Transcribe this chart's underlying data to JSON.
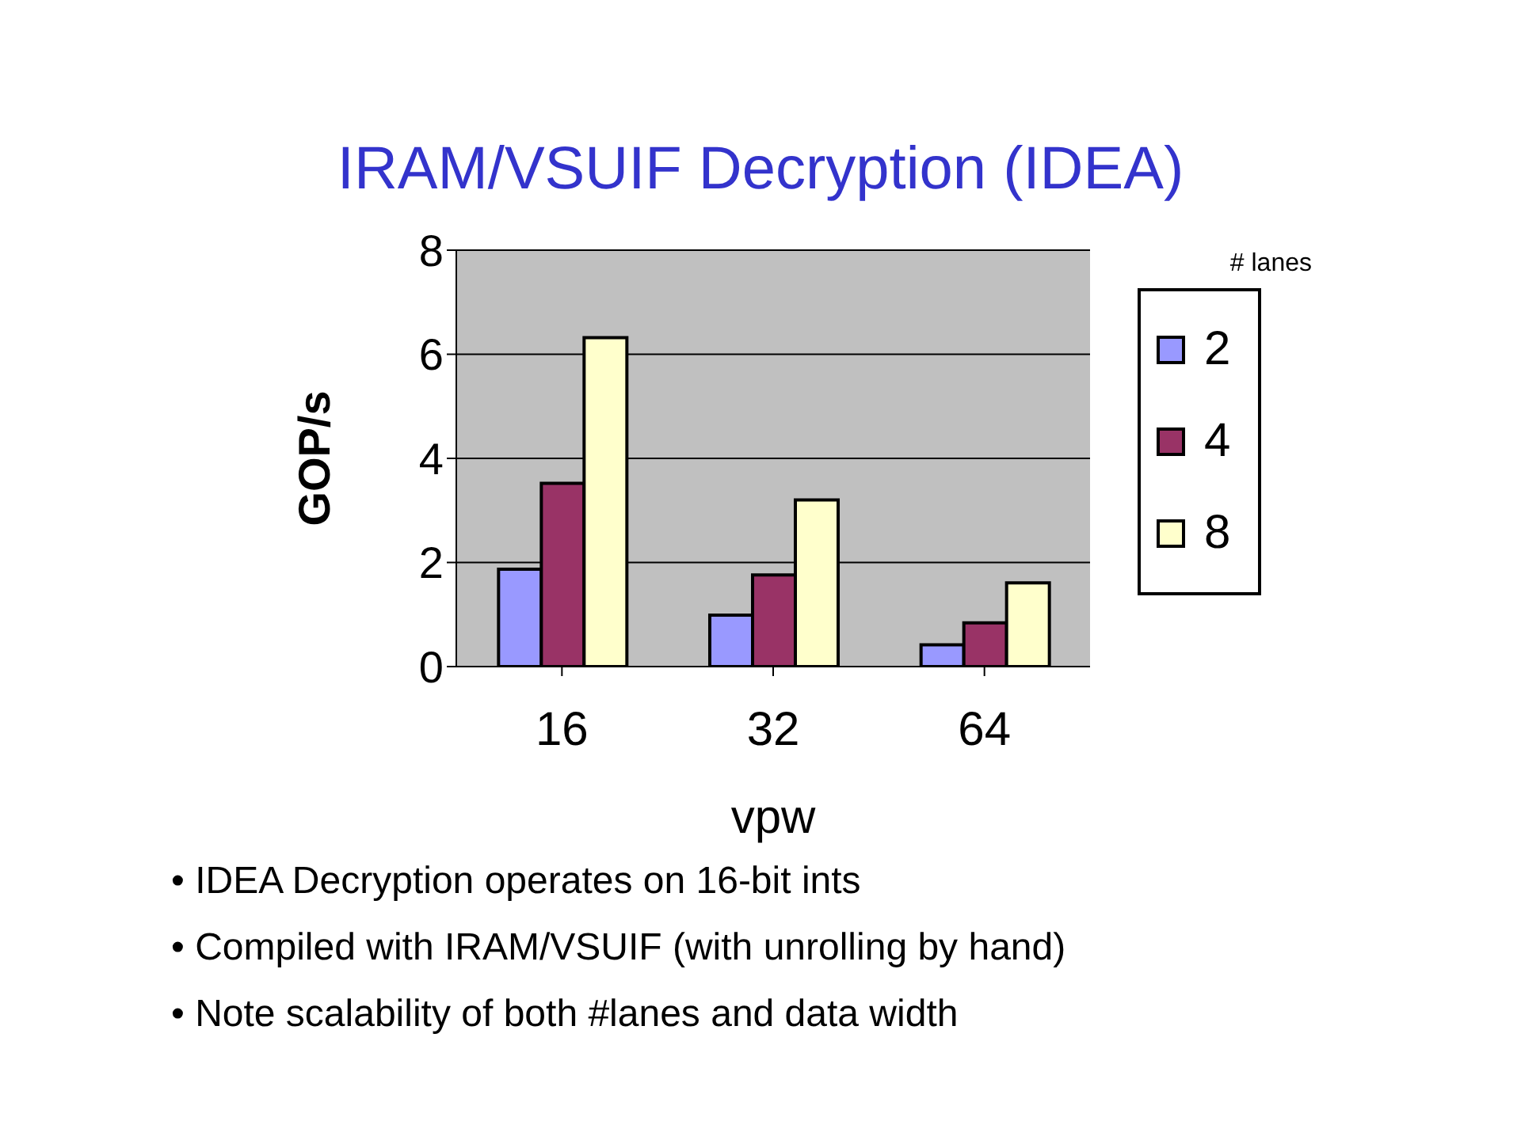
{
  "chart_data": {
    "type": "bar",
    "title": "IRAM/VSUIF Decryption (IDEA)",
    "xlabel": "vpw",
    "ylabel": "GOP/s",
    "legend_title": "# lanes",
    "categories": [
      "16",
      "32",
      "64"
    ],
    "series": [
      {
        "name": "2",
        "color": "#9999ff",
        "values": [
          1.87,
          0.99,
          0.42
        ]
      },
      {
        "name": "4",
        "color": "#993366",
        "values": [
          3.52,
          1.76,
          0.84
        ]
      },
      {
        "name": "8",
        "color": "#ffffcc",
        "values": [
          6.32,
          3.2,
          1.61
        ]
      }
    ],
    "ylim": [
      0,
      8
    ],
    "yticks": [
      0,
      2,
      4,
      6,
      8
    ],
    "grid": "y",
    "legend": "right",
    "annotations": [
      "• IDEA Decryption operates on 16-bit ints",
      "• Compiled with IRAM/VSUIF (with unrolling by hand)",
      "• Note scalability of both #lanes and data width"
    ]
  }
}
